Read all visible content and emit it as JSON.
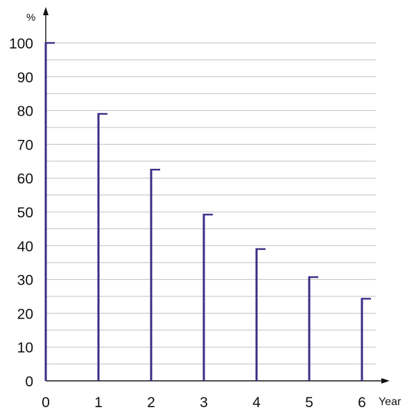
{
  "chart_data": {
    "type": "bar",
    "style": "stem",
    "title": "",
    "ylabel": "%",
    "xlabel": "Year",
    "x": [
      0,
      1,
      2,
      3,
      4,
      5,
      6
    ],
    "values": [
      100,
      79,
      62.5,
      49.2,
      39,
      30.7,
      24.3
    ],
    "xlim": [
      0,
      6
    ],
    "ylim": [
      0,
      100
    ],
    "y_ticks": [
      0,
      10,
      20,
      30,
      40,
      50,
      60,
      70,
      80,
      90,
      100
    ],
    "x_ticks": [
      0,
      1,
      2,
      3,
      4,
      5,
      6
    ],
    "grid": "horizontal",
    "legend": "none",
    "colors": {
      "stem": "#3a2d86",
      "grid": "#bfbfbf",
      "axis": "#111111"
    }
  }
}
